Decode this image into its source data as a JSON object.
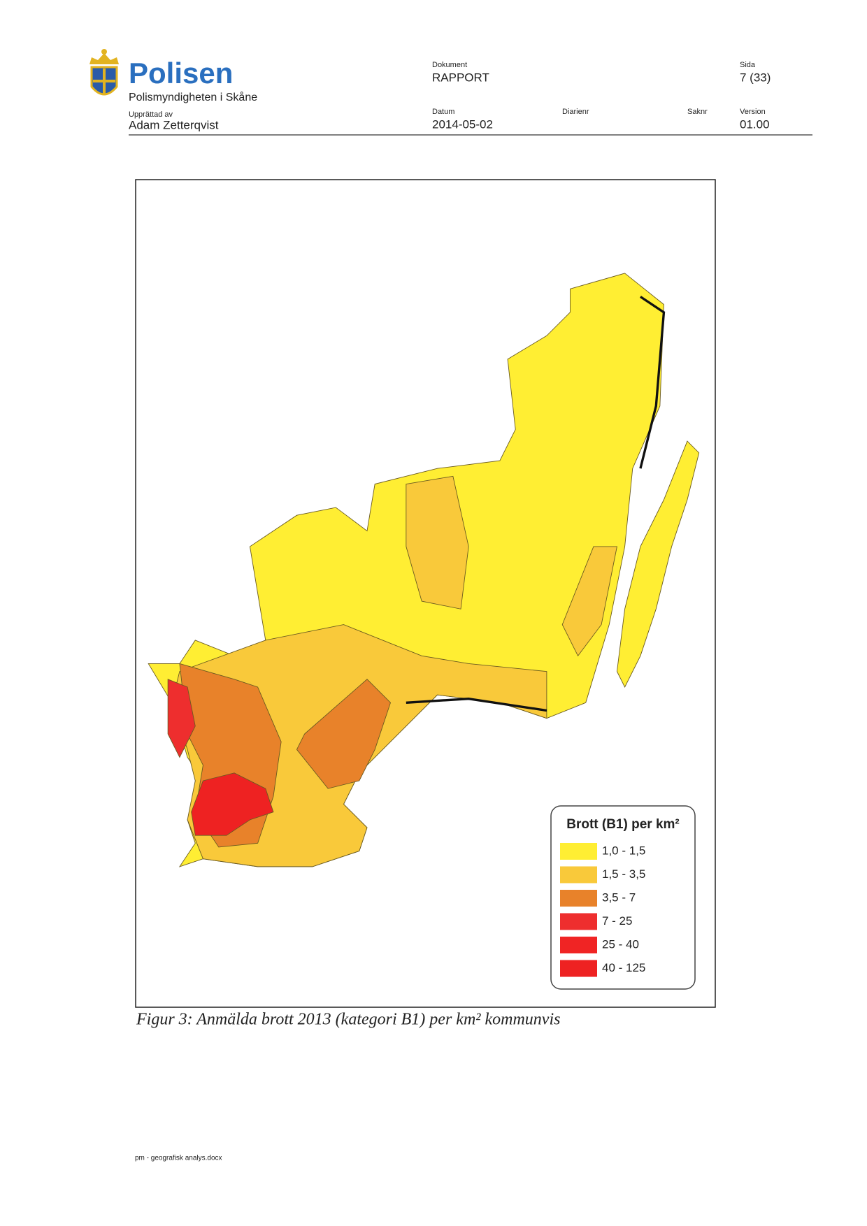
{
  "header": {
    "logo_text": "Polisen",
    "organization": "Polismyndigheten i Skåne",
    "author_label": "Upprättad av",
    "author": "Adam Zetterqvist",
    "document_label": "Dokument",
    "document": "RAPPORT",
    "date_label": "Datum",
    "date": "2014-05-02",
    "diarienr_label": "Diarienr",
    "saknr_label": "Saknr",
    "page_label": "Sida",
    "page": "7 (33)",
    "version_label": "Version",
    "version": "01.00"
  },
  "map": {
    "legend": {
      "title": "Brott (B1) per km²",
      "items": [
        {
          "label": "1,0 - 1,5",
          "color": "#ffee33"
        },
        {
          "label": "1,5 - 3,5",
          "color": "#f9c93a"
        },
        {
          "label": "3,5 - 7",
          "color": "#e8822a"
        },
        {
          "label": "7 - 25",
          "color": "#ee2e2e"
        },
        {
          "label": "25 - 40",
          "color": "#f02424"
        },
        {
          "label": "40 - 125",
          "color": "#ee2222"
        }
      ]
    }
  },
  "caption": "Figur 3: Anmälda brott 2013 (kategori B1) per km² kommunvis",
  "footer": "pm - geografisk analys.docx"
}
